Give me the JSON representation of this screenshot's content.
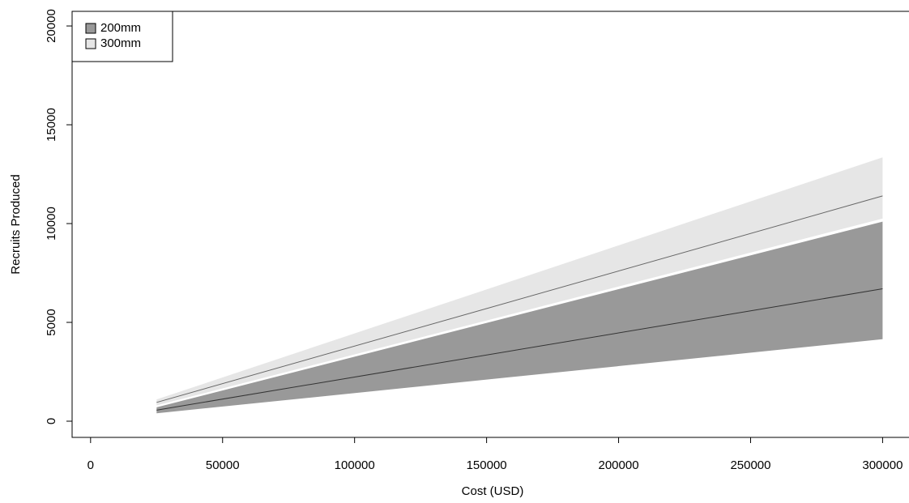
{
  "chart_data": {
    "type": "line",
    "x_label": "Cost (USD)",
    "y_label": "Recruits Produced",
    "x": [
      25000,
      300000
    ],
    "series": [
      {
        "name": "200mm",
        "color": "#999999",
        "line_color": "#333333",
        "values": [
          560,
          6700
        ],
        "lower": [
          400,
          4150
        ],
        "upper": [
          700,
          10100
        ]
      },
      {
        "name": "300mm",
        "color": "#e6e6e6",
        "line_color": "#666666",
        "values": [
          950,
          11400
        ],
        "lower": [
          800,
          10250
        ],
        "upper": [
          1100,
          13350
        ]
      }
    ],
    "xlim": [
      -7000,
      310000
    ],
    "ylim": [
      -820,
      20740
    ],
    "xticks": [
      0,
      50000,
      100000,
      150000,
      200000,
      250000,
      300000
    ],
    "yticks": [
      0,
      5000,
      10000,
      15000,
      20000
    ],
    "legend": "top-left"
  }
}
